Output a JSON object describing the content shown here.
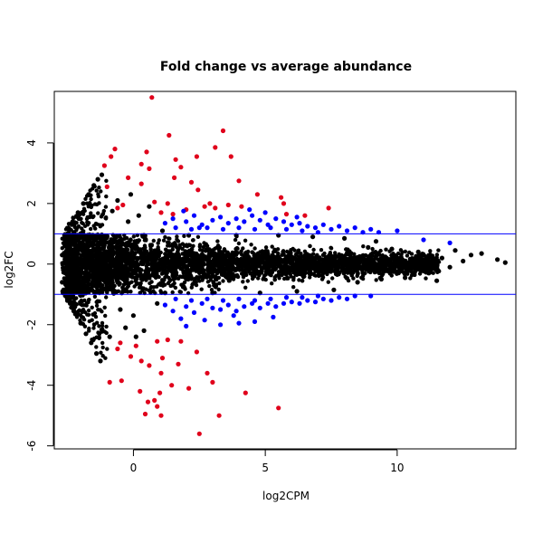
{
  "chart_data": {
    "type": "scatter",
    "title": "Fold change vs average abundance",
    "xlabel": "log2CPM",
    "ylabel": "log2FC",
    "xlim": [
      -3.0,
      14.5
    ],
    "ylim": [
      -6.1,
      5.7
    ],
    "xticks": [
      0,
      5,
      10
    ],
    "yticks": [
      -6,
      -4,
      -2,
      0,
      2,
      4
    ],
    "grid": false,
    "legend": "none",
    "hlines": [
      {
        "y": 1,
        "color": "#0000ff"
      },
      {
        "y": -1,
        "color": "#0000ff"
      }
    ],
    "colors": {
      "not_significant": "#000000",
      "significant": "#0000ff",
      "significant_large_fc": "#e0001b",
      "reference_line": "#0000ff"
    },
    "series": [
      {
        "color": "#e0001b",
        "points": [
          [
            0.7,
            5.5
          ],
          [
            1.35,
            4.25
          ],
          [
            3.4,
            4.4
          ],
          [
            3.1,
            3.85
          ],
          [
            -0.7,
            3.8
          ],
          [
            -0.85,
            3.55
          ],
          [
            0.5,
            3.7
          ],
          [
            -1.1,
            3.25
          ],
          [
            0.3,
            3.3
          ],
          [
            2.4,
            3.55
          ],
          [
            3.7,
            3.55
          ],
          [
            1.6,
            3.45
          ],
          [
            0.6,
            3.15
          ],
          [
            1.8,
            3.2
          ],
          [
            -0.2,
            2.85
          ],
          [
            0.3,
            2.65
          ],
          [
            1.55,
            2.85
          ],
          [
            2.2,
            2.7
          ],
          [
            4.0,
            2.75
          ],
          [
            -1.0,
            2.55
          ],
          [
            2.45,
            2.45
          ],
          [
            0.8,
            2.05
          ],
          [
            1.3,
            2.0
          ],
          [
            2.9,
            2.0
          ],
          [
            4.7,
            2.3
          ],
          [
            5.6,
            2.2
          ],
          [
            5.7,
            2.0
          ],
          [
            -0.4,
            1.95
          ],
          [
            -0.6,
            1.85
          ],
          [
            1.05,
            1.7
          ],
          [
            1.5,
            1.65
          ],
          [
            2.0,
            1.8
          ],
          [
            2.7,
            1.9
          ],
          [
            3.1,
            1.85
          ],
          [
            3.6,
            1.95
          ],
          [
            4.1,
            1.9
          ],
          [
            5.8,
            1.65
          ],
          [
            7.4,
            1.85
          ],
          [
            6.5,
            1.6
          ],
          [
            0.1,
            -2.7
          ],
          [
            -0.5,
            -2.6
          ],
          [
            -0.6,
            -2.8
          ],
          [
            0.9,
            -2.55
          ],
          [
            1.3,
            -2.5
          ],
          [
            1.8,
            -2.55
          ],
          [
            2.4,
            -2.9
          ],
          [
            -0.1,
            -3.05
          ],
          [
            1.1,
            -3.1
          ],
          [
            0.6,
            -3.35
          ],
          [
            1.05,
            -3.6
          ],
          [
            -0.45,
            -3.85
          ],
          [
            1.45,
            -4.0
          ],
          [
            3.0,
            -3.9
          ],
          [
            0.25,
            -4.2
          ],
          [
            1.0,
            -4.25
          ],
          [
            2.1,
            -4.1
          ],
          [
            4.25,
            -4.25
          ],
          [
            0.8,
            -4.5
          ],
          [
            0.9,
            -4.7
          ],
          [
            0.55,
            -4.55
          ],
          [
            0.45,
            -4.95
          ],
          [
            1.05,
            -5.0
          ],
          [
            3.25,
            -5.0
          ],
          [
            5.5,
            -4.75
          ],
          [
            2.5,
            -5.6
          ],
          [
            -0.9,
            -3.9
          ],
          [
            0.3,
            -3.2
          ],
          [
            2.8,
            -3.6
          ],
          [
            1.7,
            -3.3
          ]
        ]
      },
      {
        "color": "#0000ff",
        "points": [
          [
            1.2,
            1.35
          ],
          [
            1.5,
            1.5
          ],
          [
            2.0,
            1.4
          ],
          [
            2.3,
            1.6
          ],
          [
            2.6,
            1.3
          ],
          [
            3.0,
            1.45
          ],
          [
            3.3,
            1.55
          ],
          [
            3.6,
            1.35
          ],
          [
            3.9,
            1.5
          ],
          [
            4.2,
            1.4
          ],
          [
            4.5,
            1.6
          ],
          [
            4.8,
            1.45
          ],
          [
            5.1,
            1.3
          ],
          [
            5.4,
            1.5
          ],
          [
            5.7,
            1.4
          ],
          [
            6.0,
            1.3
          ],
          [
            6.3,
            1.35
          ],
          [
            6.6,
            1.25
          ],
          [
            6.9,
            1.2
          ],
          [
            7.2,
            1.3
          ],
          [
            7.5,
            1.15
          ],
          [
            7.8,
            1.25
          ],
          [
            8.1,
            1.1
          ],
          [
            8.4,
            1.2
          ],
          [
            8.7,
            1.05
          ],
          [
            9.0,
            1.15
          ],
          [
            9.3,
            1.05
          ],
          [
            10.0,
            1.1
          ],
          [
            11.0,
            0.8
          ],
          [
            12.0,
            0.7
          ],
          [
            1.6,
            1.2
          ],
          [
            2.2,
            1.15
          ],
          [
            2.8,
            1.2
          ],
          [
            3.4,
            1.15
          ],
          [
            4.0,
            1.2
          ],
          [
            4.6,
            1.15
          ],
          [
            5.2,
            1.2
          ],
          [
            5.8,
            1.15
          ],
          [
            6.4,
            1.1
          ],
          [
            7.0,
            1.05
          ],
          [
            1.9,
            1.75
          ],
          [
            2.5,
            1.2
          ],
          [
            4.4,
            1.8
          ],
          [
            5.0,
            1.7
          ],
          [
            6.2,
            1.55
          ],
          [
            1.2,
            -1.35
          ],
          [
            1.5,
            -1.55
          ],
          [
            2.0,
            -1.4
          ],
          [
            2.3,
            -1.6
          ],
          [
            2.6,
            -1.3
          ],
          [
            3.0,
            -1.45
          ],
          [
            3.3,
            -1.5
          ],
          [
            3.6,
            -1.35
          ],
          [
            3.9,
            -1.55
          ],
          [
            4.2,
            -1.4
          ],
          [
            4.5,
            -1.3
          ],
          [
            4.8,
            -1.45
          ],
          [
            5.1,
            -1.3
          ],
          [
            5.4,
            -1.4
          ],
          [
            5.7,
            -1.3
          ],
          [
            6.0,
            -1.25
          ],
          [
            6.3,
            -1.3
          ],
          [
            6.6,
            -1.2
          ],
          [
            6.9,
            -1.25
          ],
          [
            7.2,
            -1.15
          ],
          [
            7.5,
            -1.2
          ],
          [
            7.8,
            -1.1
          ],
          [
            8.1,
            -1.15
          ],
          [
            8.4,
            -1.05
          ],
          [
            9.0,
            -1.05
          ],
          [
            1.6,
            -1.15
          ],
          [
            2.2,
            -1.2
          ],
          [
            2.8,
            -1.15
          ],
          [
            3.4,
            -1.2
          ],
          [
            4.0,
            -1.15
          ],
          [
            4.6,
            -1.2
          ],
          [
            5.2,
            -1.15
          ],
          [
            5.8,
            -1.1
          ],
          [
            6.4,
            -1.1
          ],
          [
            7.0,
            -1.05
          ],
          [
            2.0,
            -2.05
          ],
          [
            2.7,
            -1.85
          ],
          [
            3.3,
            -2.0
          ],
          [
            4.0,
            -1.95
          ],
          [
            4.6,
            -1.9
          ],
          [
            5.3,
            -1.75
          ],
          [
            1.8,
            -1.8
          ],
          [
            3.8,
            -1.7
          ]
        ]
      },
      {
        "color": "#000000",
        "points": [
          [
            -1.2,
            2.95
          ],
          [
            -1.35,
            2.8
          ],
          [
            -1.5,
            2.6
          ],
          [
            -1.7,
            2.3
          ],
          [
            -1.9,
            2.0
          ],
          [
            -2.1,
            1.7
          ],
          [
            -2.3,
            1.4
          ],
          [
            -2.5,
            1.0
          ],
          [
            -2.6,
            0.8
          ],
          [
            -2.7,
            0.3
          ],
          [
            -1.25,
            -3.2
          ],
          [
            -1.4,
            -2.95
          ],
          [
            -1.6,
            -2.6
          ],
          [
            -1.8,
            -2.3
          ],
          [
            -2.0,
            -1.95
          ],
          [
            -2.2,
            -1.65
          ],
          [
            -2.4,
            -1.3
          ],
          [
            -2.55,
            -1.0
          ],
          [
            -2.7,
            -0.6
          ],
          [
            13.8,
            0.15
          ],
          [
            14.1,
            0.05
          ],
          [
            13.2,
            0.35
          ],
          [
            12.8,
            0.3
          ],
          [
            12.5,
            0.1
          ],
          [
            12.0,
            -0.1
          ],
          [
            11.7,
            0.2
          ],
          [
            11.2,
            -0.3
          ],
          [
            10.8,
            0.4
          ],
          [
            10.3,
            -0.45
          ],
          [
            9.8,
            0.5
          ],
          [
            9.4,
            -0.5
          ],
          [
            8.9,
            0.55
          ],
          [
            8.5,
            -0.6
          ],
          [
            11.5,
            -0.55
          ],
          [
            12.2,
            0.45
          ],
          [
            9.2,
            0.75
          ],
          [
            8.0,
            0.85
          ],
          [
            7.6,
            -0.85
          ],
          [
            6.8,
            0.9
          ],
          [
            6.2,
            -0.9
          ],
          [
            5.5,
            0.95
          ],
          [
            4.8,
            -0.95
          ],
          [
            3.9,
            0.95
          ],
          [
            3.0,
            -0.95
          ],
          [
            2.1,
            0.95
          ],
          [
            1.2,
            -0.95
          ],
          [
            0.4,
            0.95
          ],
          [
            -0.4,
            -0.9
          ],
          [
            -1.0,
            0.9
          ],
          [
            -0.2,
            1.4
          ],
          [
            0.2,
            1.6
          ],
          [
            -0.5,
            -1.5
          ],
          [
            0.0,
            -1.7
          ],
          [
            -0.8,
            1.75
          ],
          [
            -0.3,
            -2.1
          ],
          [
            0.4,
            -2.2
          ],
          [
            -0.6,
            2.1
          ],
          [
            0.6,
            1.9
          ],
          [
            -0.9,
            -2.4
          ],
          [
            0.9,
            -1.3
          ],
          [
            1.1,
            1.1
          ],
          [
            -0.1,
            2.3
          ],
          [
            0.1,
            -2.4
          ],
          [
            -1.0,
            -0.3
          ],
          [
            1.5,
            0.3
          ],
          [
            2.5,
            -0.2
          ],
          [
            3.5,
            0.1
          ],
          [
            4.5,
            -0.1
          ],
          [
            5.5,
            0.2
          ],
          [
            6.5,
            -0.3
          ],
          [
            7.5,
            0.15
          ],
          [
            8.5,
            0.0
          ],
          [
            9.5,
            -0.2
          ],
          [
            10.5,
            0.1
          ],
          [
            11.5,
            0.1
          ]
        ]
      }
    ]
  }
}
